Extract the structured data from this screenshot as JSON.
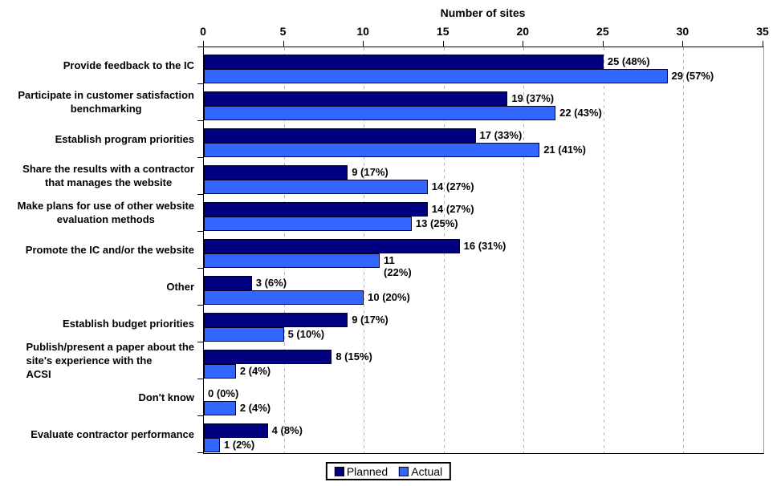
{
  "chart_data": {
    "type": "bar",
    "orientation": "horizontal",
    "title": "Number of sites",
    "axis": {
      "min": 0,
      "max": 35,
      "step": 5,
      "tick_labels": [
        "0",
        "5",
        "10",
        "15",
        "20",
        "25",
        "30",
        "35"
      ],
      "position": "top"
    },
    "grid": true,
    "categories": [
      {
        "lines": [
          "Provide feedback to the IC"
        ]
      },
      {
        "lines": [
          "Participate in customer satisfaction",
          "benchmarking"
        ]
      },
      {
        "lines": [
          "Establish program priorities"
        ]
      },
      {
        "lines": [
          "Share the results with a contractor",
          "that manages the website"
        ]
      },
      {
        "lines": [
          "Make plans for use of other website",
          "evaluation methods"
        ]
      },
      {
        "lines": [
          "Promote the IC and/or the website"
        ]
      },
      {
        "lines": [
          "Other"
        ]
      },
      {
        "lines": [
          "Establish budget priorities"
        ]
      },
      {
        "lines": [
          "Publish/present a paper about the",
          "site's experience with the",
          "ACSI"
        ],
        "align": "left"
      },
      {
        "lines": [
          "Don't know"
        ]
      },
      {
        "lines": [
          "Evaluate contractor performance"
        ]
      }
    ],
    "series": [
      {
        "name": "Planned",
        "color": "#000080",
        "values": [
          25,
          19,
          17,
          9,
          14,
          16,
          3,
          9,
          8,
          0,
          4
        ],
        "labels": [
          "25 (48%)",
          "19 (37%)",
          "17 (33%)",
          "9 (17%)",
          "14 (27%)",
          "16 (31%)",
          "3 (6%)",
          "9 (17%)",
          "8 (15%)",
          "0 (0%)",
          "4 (8%)"
        ]
      },
      {
        "name": "Actual",
        "color": "#3366FF",
        "values": [
          29,
          22,
          21,
          14,
          13,
          11,
          10,
          5,
          2,
          2,
          1
        ],
        "labels": [
          "29 (57%)",
          "22 (43%)",
          "21 (41%)",
          "14 (27%)",
          "13 (25%)",
          "11\n(22%)",
          "10 (20%)",
          "5 (10%)",
          "2 (4%)",
          "2 (4%)",
          "1 (2%)"
        ]
      }
    ],
    "legend": {
      "position": "bottom",
      "entries": [
        "Planned",
        "Actual"
      ]
    },
    "colors": {
      "gridline": "#b3b3b3",
      "axis": "#000000",
      "background": "#ffffff"
    }
  }
}
